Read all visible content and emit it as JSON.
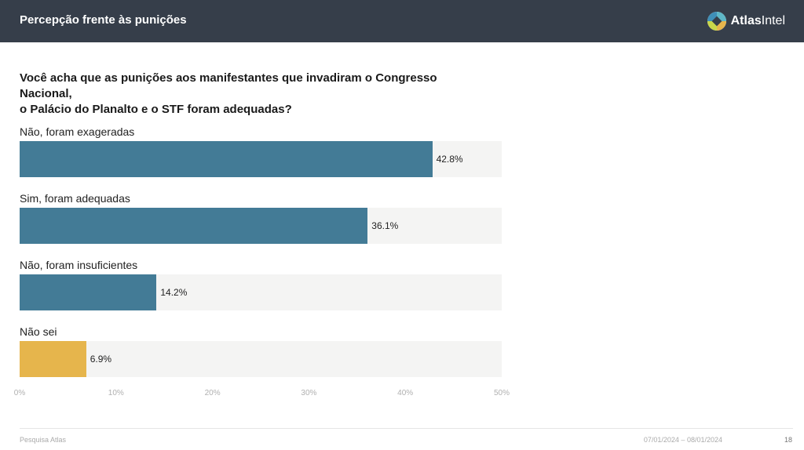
{
  "header": {
    "title": "Percepção frente às punições",
    "brand_bold": "Atlas",
    "brand_rest": "Intel"
  },
  "colors": {
    "header_bg": "#363e4a",
    "bar_primary": "#437b96",
    "bar_highlight": "#e6b54c",
    "track": "#f4f4f3"
  },
  "question": {
    "line1": "Você acha que as punições aos manifestantes que invadiram o Congresso Nacional,",
    "line2": "o Palácio do Planalto e o STF foram adequadas?"
  },
  "chart_data": {
    "type": "bar",
    "orientation": "horizontal",
    "categories": [
      "Não, foram exageradas",
      "Sim, foram adequadas",
      "Não, foram insuficientes",
      "Não sei"
    ],
    "values": [
      42.8,
      36.1,
      14.2,
      6.9
    ],
    "value_labels": [
      "42.8%",
      "36.1%",
      "14.2%",
      "6.9%"
    ],
    "highlight": [
      false,
      false,
      false,
      true
    ],
    "xlim": [
      0,
      50
    ],
    "ticks": [
      "0%",
      "10%",
      "20%",
      "30%",
      "40%",
      "50%"
    ],
    "grid": false
  },
  "footer": {
    "source": "Pesquisa Atlas",
    "date_range": "07/01/2024 – 08/01/2024",
    "page": "18"
  }
}
